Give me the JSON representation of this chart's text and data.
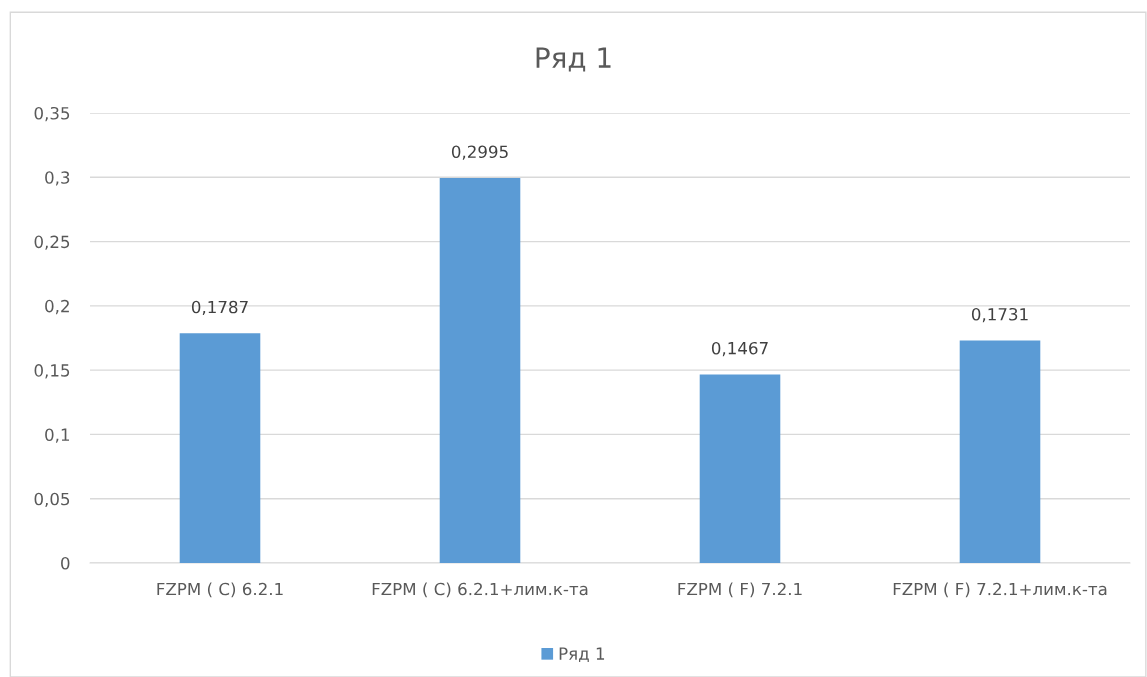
{
  "chart_data": {
    "type": "bar",
    "title": "Ряд 1",
    "categories": [
      "FZPM ( C) 6.2.1",
      "FZPM ( C) 6.2.1+лим.к-та",
      "FZPM ( F) 7.2.1",
      "FZPM ( F) 7.2.1+лим.к-та"
    ],
    "series": [
      {
        "name": "Ряд 1",
        "color": "#5b9bd5",
        "values": [
          0.1787,
          0.2995,
          0.1467,
          0.1731
        ],
        "value_labels": [
          "0,1787",
          "0,2995",
          "0,1467",
          "0,1731"
        ]
      }
    ],
    "ylim": [
      0,
      0.35
    ],
    "yticks": [
      0,
      {
        "value": 0.05,
        "label": "0,05"
      },
      {
        "value": 0.1,
        "label": "0,1"
      },
      {
        "value": 0.15,
        "label": "0,15"
      },
      {
        "value": 0.2,
        "label": "0,2"
      },
      {
        "value": 0.25,
        "label": "0,25"
      },
      {
        "value": 0.3,
        "label": "0,3"
      },
      {
        "value": 0.35,
        "label": "0,35"
      }
    ],
    "grid": "y",
    "legend": "bottom"
  }
}
